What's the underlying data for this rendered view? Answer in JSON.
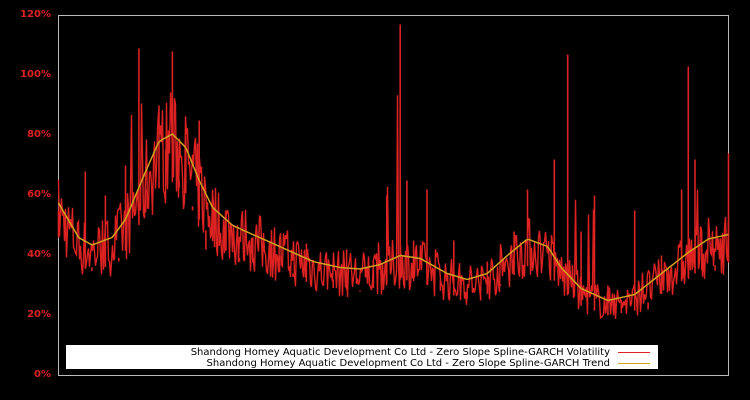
{
  "chart_data": {
    "type": "line",
    "title": "",
    "xlabel": "",
    "ylabel": "",
    "ylim": [
      0,
      120
    ],
    "y_ticks": [
      "0%",
      "20%",
      "40%",
      "60%",
      "80%",
      "100%",
      "120%"
    ],
    "y_tick_values": [
      0,
      20,
      40,
      60,
      80,
      100,
      120
    ],
    "grid": false,
    "legend_position": "bottom",
    "x_positions_note": "x expressed as fraction of plot width (0 = left edge, 1 = right edge); no x tick labels shown",
    "series": [
      {
        "name": "Shandong Homey Aquatic Development Co Ltd - Zero Slope Spline-GARCH Volatility",
        "color": "#dd2222",
        "x": [
          0.0,
          0.02,
          0.04,
          0.05,
          0.07,
          0.09,
          0.1,
          0.12,
          0.13,
          0.15,
          0.16,
          0.17,
          0.18,
          0.19,
          0.2,
          0.21,
          0.22,
          0.23,
          0.24,
          0.25,
          0.27,
          0.29,
          0.31,
          0.33,
          0.35,
          0.37,
          0.39,
          0.41,
          0.43,
          0.45,
          0.47,
          0.49,
          0.51,
          0.52,
          0.53,
          0.55,
          0.57,
          0.59,
          0.61,
          0.63,
          0.64,
          0.66,
          0.68,
          0.7,
          0.72,
          0.74,
          0.76,
          0.78,
          0.8,
          0.82,
          0.84,
          0.86,
          0.88,
          0.9,
          0.92,
          0.93,
          0.94,
          0.95,
          0.96,
          0.98,
          1.0
        ],
        "values": [
          55,
          40,
          68,
          36,
          60,
          38,
          70,
          109,
          62,
          90,
          75,
          108,
          65,
          80,
          55,
          85,
          42,
          62,
          45,
          55,
          38,
          46,
          36,
          40,
          34,
          44,
          30,
          32,
          42,
          28,
          38,
          60,
          117,
          65,
          45,
          62,
          32,
          45,
          28,
          25,
          38,
          30,
          48,
          62,
          35,
          72,
          107,
          48,
          60,
          30,
          25,
          55,
          22,
          40,
          30,
          62,
          103,
          72,
          48,
          35,
          74
        ]
      },
      {
        "name": "Shandong Homey Aquatic Development Co Ltd - Zero Slope Spline-GARCH Trend",
        "color": "#d4a020",
        "x": [
          0.0,
          0.03,
          0.05,
          0.08,
          0.1,
          0.13,
          0.15,
          0.17,
          0.19,
          0.21,
          0.23,
          0.26,
          0.3,
          0.34,
          0.38,
          0.42,
          0.45,
          0.48,
          0.51,
          0.54,
          0.58,
          0.61,
          0.64,
          0.67,
          0.7,
          0.73,
          0.75,
          0.78,
          0.82,
          0.86,
          0.9,
          0.94,
          0.97,
          1.0
        ],
        "values": [
          57.5,
          46,
          43.5,
          46,
          52,
          68,
          78,
          80.5,
          76,
          65,
          56,
          50,
          46,
          42,
          38,
          36,
          35.5,
          37,
          40,
          39,
          34,
          32,
          34,
          40,
          45.5,
          43,
          36,
          29,
          25,
          27,
          34,
          41,
          45.5,
          47
        ]
      }
    ]
  },
  "legend": {
    "items": [
      {
        "label": "Shandong Homey Aquatic Development Co Ltd - Zero Slope Spline-GARCH Volatility",
        "color": "#dd2222"
      },
      {
        "label": "Shandong Homey Aquatic Development Co Ltd - Zero Slope Spline-GARCH Trend",
        "color": "#d4a020"
      }
    ]
  },
  "axis": {
    "y_labels": [
      "120%",
      "100%",
      "80%",
      "60%",
      "40%",
      "20%",
      "0%"
    ],
    "label_color": "#dd2222",
    "frame_color": "#bbbbbb"
  }
}
